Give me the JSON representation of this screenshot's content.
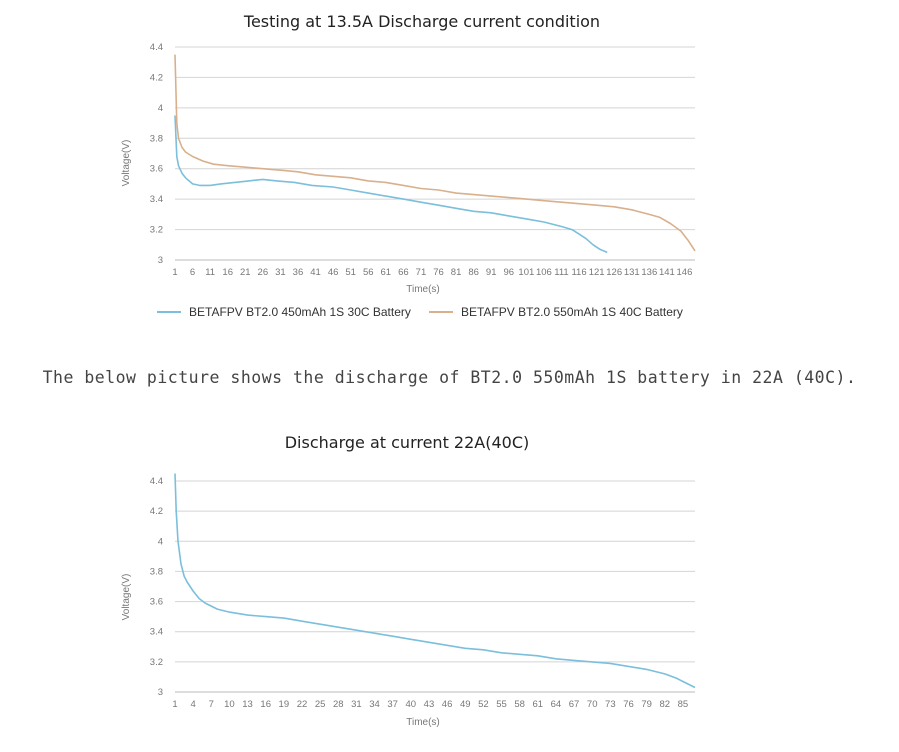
{
  "caption": "The below picture shows the discharge of BT2.0 550mAh 1S battery in 22A (40C).",
  "chart_data": [
    {
      "type": "line",
      "title": "Testing at 13.5A Discharge current condition",
      "xlabel": "Time(s)",
      "ylabel": "Voltage(V)",
      "ylim": [
        3,
        4.4
      ],
      "yticks": [
        "3",
        "3.2",
        "3.4",
        "3.6",
        "3.8",
        "4",
        "4.2",
        "4.4"
      ],
      "xlim": [
        1,
        149
      ],
      "xticks": [
        1,
        6,
        11,
        16,
        21,
        26,
        31,
        36,
        41,
        46,
        51,
        56,
        61,
        66,
        71,
        76,
        81,
        86,
        91,
        96,
        101,
        106,
        111,
        116,
        121,
        126,
        131,
        136,
        141,
        146
      ],
      "grid": true,
      "legend": "bottom",
      "series": [
        {
          "name": "BETAFPV BT2.0 450mAh 1S 30C Battery",
          "color": "#7bbfdc",
          "x": [
            1,
            1.5,
            2,
            3,
            4,
            6,
            8,
            11,
            14,
            18,
            22,
            26,
            30,
            35,
            40,
            46,
            51,
            56,
            61,
            66,
            71,
            76,
            81,
            86,
            91,
            96,
            101,
            106,
            111,
            114,
            116,
            118,
            120,
            122,
            124
          ],
          "y": [
            3.95,
            3.68,
            3.62,
            3.57,
            3.54,
            3.5,
            3.49,
            3.49,
            3.5,
            3.51,
            3.52,
            3.53,
            3.52,
            3.51,
            3.49,
            3.48,
            3.46,
            3.44,
            3.42,
            3.4,
            3.38,
            3.36,
            3.34,
            3.32,
            3.31,
            3.29,
            3.27,
            3.25,
            3.22,
            3.2,
            3.17,
            3.14,
            3.1,
            3.07,
            3.05
          ]
        },
        {
          "name": "BETAFPV BT2.0 550mAh 1S 40C Battery",
          "color": "#d9b08c",
          "x": [
            1,
            1.5,
            2,
            3,
            4,
            6,
            9,
            12,
            16,
            21,
            26,
            31,
            36,
            41,
            46,
            51,
            56,
            61,
            66,
            71,
            76,
            81,
            86,
            91,
            96,
            101,
            106,
            111,
            116,
            121,
            126,
            131,
            136,
            139,
            142,
            145,
            147,
            149
          ],
          "y": [
            4.35,
            3.9,
            3.8,
            3.74,
            3.71,
            3.68,
            3.65,
            3.63,
            3.62,
            3.61,
            3.6,
            3.59,
            3.58,
            3.56,
            3.55,
            3.54,
            3.52,
            3.51,
            3.49,
            3.47,
            3.46,
            3.44,
            3.43,
            3.42,
            3.41,
            3.4,
            3.39,
            3.38,
            3.37,
            3.36,
            3.35,
            3.33,
            3.3,
            3.28,
            3.24,
            3.19,
            3.13,
            3.06
          ]
        }
      ]
    },
    {
      "type": "line",
      "title": "Discharge at current 22A(40C)",
      "xlabel": "Time(s)",
      "ylabel": "Voltage(V)",
      "ylim": [
        3,
        4.4
      ],
      "yticks": [
        "3",
        "3.2",
        "3.4",
        "3.6",
        "3.8",
        "4",
        "4.2",
        "4.4"
      ],
      "xlim": [
        1,
        87
      ],
      "xticks": [
        1,
        4,
        7,
        10,
        13,
        16,
        19,
        22,
        25,
        28,
        31,
        34,
        37,
        40,
        43,
        46,
        49,
        52,
        55,
        58,
        61,
        64,
        67,
        70,
        73,
        76,
        79,
        82,
        85
      ],
      "grid": true,
      "legend": "none",
      "series": [
        {
          "name": "",
          "color": "#7bbfdc",
          "x": [
            1,
            1.2,
            1.5,
            2,
            2.5,
            3,
            4,
            5,
            6,
            7,
            8,
            10,
            13,
            16,
            19,
            22,
            25,
            28,
            31,
            34,
            37,
            40,
            43,
            46,
            49,
            52,
            55,
            58,
            61,
            64,
            67,
            70,
            73,
            76,
            79,
            82,
            84,
            85,
            86,
            87
          ],
          "y": [
            4.45,
            4.2,
            4.0,
            3.85,
            3.77,
            3.73,
            3.67,
            3.62,
            3.59,
            3.57,
            3.55,
            3.53,
            3.51,
            3.5,
            3.49,
            3.47,
            3.45,
            3.43,
            3.41,
            3.39,
            3.37,
            3.35,
            3.33,
            3.31,
            3.29,
            3.28,
            3.26,
            3.25,
            3.24,
            3.22,
            3.21,
            3.2,
            3.19,
            3.17,
            3.15,
            3.12,
            3.09,
            3.07,
            3.05,
            3.03
          ]
        }
      ]
    }
  ]
}
